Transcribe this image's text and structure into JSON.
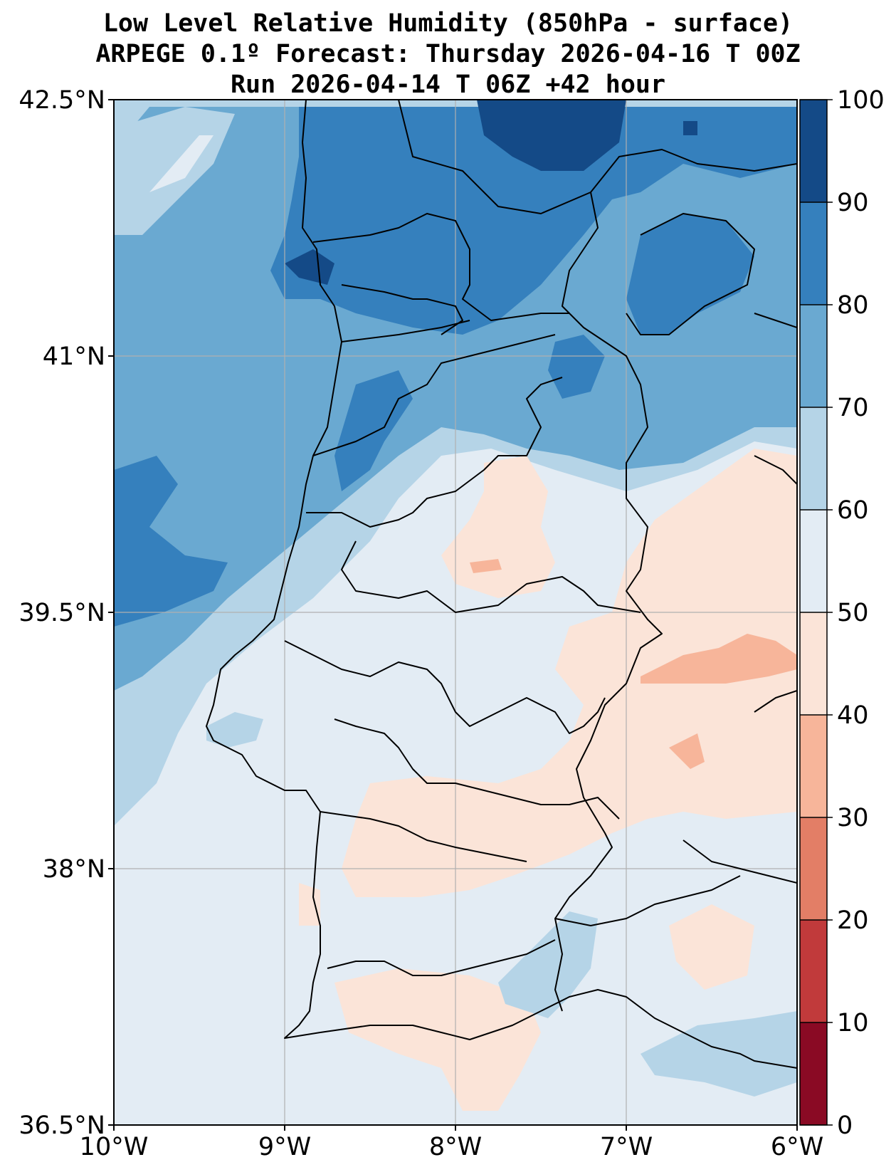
{
  "title": {
    "line1": "Low Level Relative Humidity (850hPa - surface)",
    "line2": "ARPEGE 0.1º Forecast: Thursday 2026-04-16 T 00Z",
    "line3": "Run 2026-04-14 T 06Z +42 hour"
  },
  "map": {
    "lon_range": [
      -10,
      -6
    ],
    "lat_range": [
      36.5,
      42.5
    ],
    "lat_ticks": [
      {
        "value": 42.5,
        "label": "42.5°N"
      },
      {
        "value": 41.0,
        "label": "41°N"
      },
      {
        "value": 39.5,
        "label": "39.5°N"
      },
      {
        "value": 38.0,
        "label": "38°N"
      },
      {
        "value": 36.5,
        "label": "36.5°N"
      }
    ],
    "lon_ticks": [
      {
        "value": -10,
        "label": "10°W"
      },
      {
        "value": -9,
        "label": "9°W"
      },
      {
        "value": -8,
        "label": "8°W"
      },
      {
        "value": -7,
        "label": "7°W"
      },
      {
        "value": -6,
        "label": "6°W"
      }
    ],
    "gridlines": true
  },
  "colorbar": {
    "levels": [
      0,
      10,
      20,
      30,
      40,
      50,
      60,
      70,
      80,
      90,
      100
    ],
    "labels": [
      "0",
      "10",
      "20",
      "30",
      "40",
      "50",
      "60",
      "70",
      "80",
      "90",
      "100"
    ],
    "colors": [
      "#8a0a24",
      "#c13a3b",
      "#e37e66",
      "#f7b59a",
      "#fbe4d8",
      "#e3ecf4",
      "#b5d4e7",
      "#6aa9d1",
      "#3580bd",
      "#144a87"
    ]
  }
}
